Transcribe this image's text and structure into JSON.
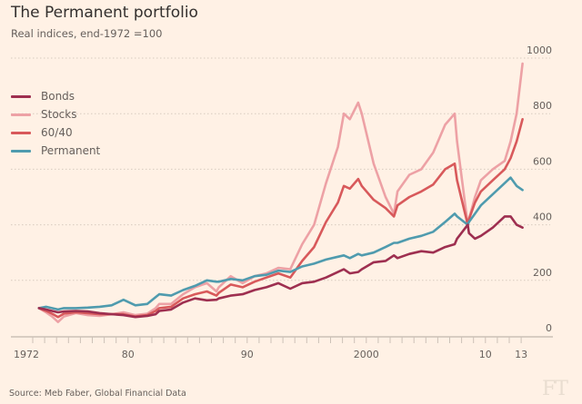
{
  "header": {
    "title": "The Permanent portfolio",
    "subtitle": "Real indices, end-1972 =100"
  },
  "footer": {
    "source": "Source: Meb Faber, Global Financial Data",
    "logo": "FT"
  },
  "chart_data": {
    "type": "line",
    "title": "The Permanent portfolio",
    "subtitle": "Real indices, end-1972 =100",
    "xlabel": "",
    "ylabel": "",
    "xlim": [
      1972,
      2014.5
    ],
    "ylim": [
      0,
      1000
    ],
    "x_ticks": [
      {
        "value": 1972,
        "label": "1972"
      },
      {
        "value": 1980,
        "label": "80"
      },
      {
        "value": 1990,
        "label": "90"
      },
      {
        "value": 2000,
        "label": "2000"
      },
      {
        "value": 2010,
        "label": "10"
      },
      {
        "value": 2013,
        "label": "13"
      }
    ],
    "y_ticks": [
      {
        "value": 0,
        "label": "0"
      },
      {
        "value": 200,
        "label": "200"
      },
      {
        "value": 400,
        "label": "400"
      },
      {
        "value": 600,
        "label": "600"
      },
      {
        "value": 800,
        "label": "800"
      },
      {
        "value": 1000,
        "label": "1000"
      }
    ],
    "grid": true,
    "legend_position": "top-left",
    "x": [
      1972.9,
      1973.5,
      1974,
      1974.5,
      1975,
      1976,
      1977,
      1978,
      1979,
      1980,
      1981,
      1982,
      1982.7,
      1983,
      1984,
      1985,
      1986,
      1987,
      1987.8,
      1988,
      1989,
      1990,
      1991,
      1992,
      1993,
      1994,
      1995,
      1996,
      1997,
      1998,
      1998.5,
      1999,
      1999.7,
      2000,
      2001,
      2002,
      2002.7,
      2003,
      2004,
      2005,
      2006,
      2007,
      2007.8,
      2008,
      2008.9,
      2009,
      2009.5,
      2010,
      2011,
      2012,
      2012.5,
      2013,
      2013.5
    ],
    "series": [
      {
        "name": "Bonds",
        "color": "#9e2f50",
        "values": [
          100,
          95,
          90,
          85,
          88,
          90,
          88,
          82,
          78,
          75,
          68,
          72,
          78,
          90,
          95,
          120,
          135,
          128,
          130,
          135,
          145,
          150,
          165,
          175,
          190,
          170,
          190,
          195,
          210,
          230,
          240,
          225,
          230,
          240,
          265,
          270,
          290,
          280,
          295,
          305,
          300,
          320,
          330,
          350,
          400,
          370,
          350,
          360,
          390,
          430,
          430,
          400,
          390
        ]
      },
      {
        "name": "Stocks",
        "color": "#eda1a5",
        "values": [
          100,
          85,
          70,
          50,
          70,
          82,
          75,
          72,
          78,
          85,
          75,
          80,
          100,
          115,
          115,
          150,
          175,
          190,
          160,
          175,
          215,
          190,
          215,
          225,
          245,
          240,
          330,
          400,
          550,
          680,
          800,
          780,
          840,
          800,
          620,
          500,
          440,
          520,
          580,
          600,
          660,
          760,
          800,
          700,
          400,
          420,
          500,
          560,
          600,
          630,
          700,
          800,
          980
        ]
      },
      {
        "name": "60/40",
        "color": "#d8595b",
        "values": [
          100,
          90,
          80,
          68,
          80,
          85,
          82,
          78,
          78,
          78,
          70,
          75,
          90,
          100,
          105,
          135,
          150,
          160,
          145,
          155,
          185,
          175,
          195,
          210,
          225,
          210,
          270,
          320,
          410,
          480,
          540,
          530,
          565,
          540,
          490,
          460,
          430,
          470,
          500,
          520,
          545,
          600,
          620,
          560,
          400,
          420,
          480,
          520,
          560,
          600,
          640,
          700,
          780
        ]
      },
      {
        "name": "Permanent",
        "color": "#4f9bae",
        "values": [
          100,
          105,
          100,
          95,
          100,
          100,
          102,
          105,
          110,
          130,
          110,
          115,
          140,
          150,
          145,
          165,
          180,
          200,
          195,
          195,
          205,
          200,
          215,
          220,
          235,
          230,
          250,
          260,
          275,
          285,
          290,
          280,
          295,
          290,
          300,
          320,
          335,
          335,
          350,
          360,
          375,
          410,
          440,
          430,
          400,
          410,
          440,
          470,
          510,
          550,
          570,
          540,
          525
        ]
      }
    ]
  }
}
